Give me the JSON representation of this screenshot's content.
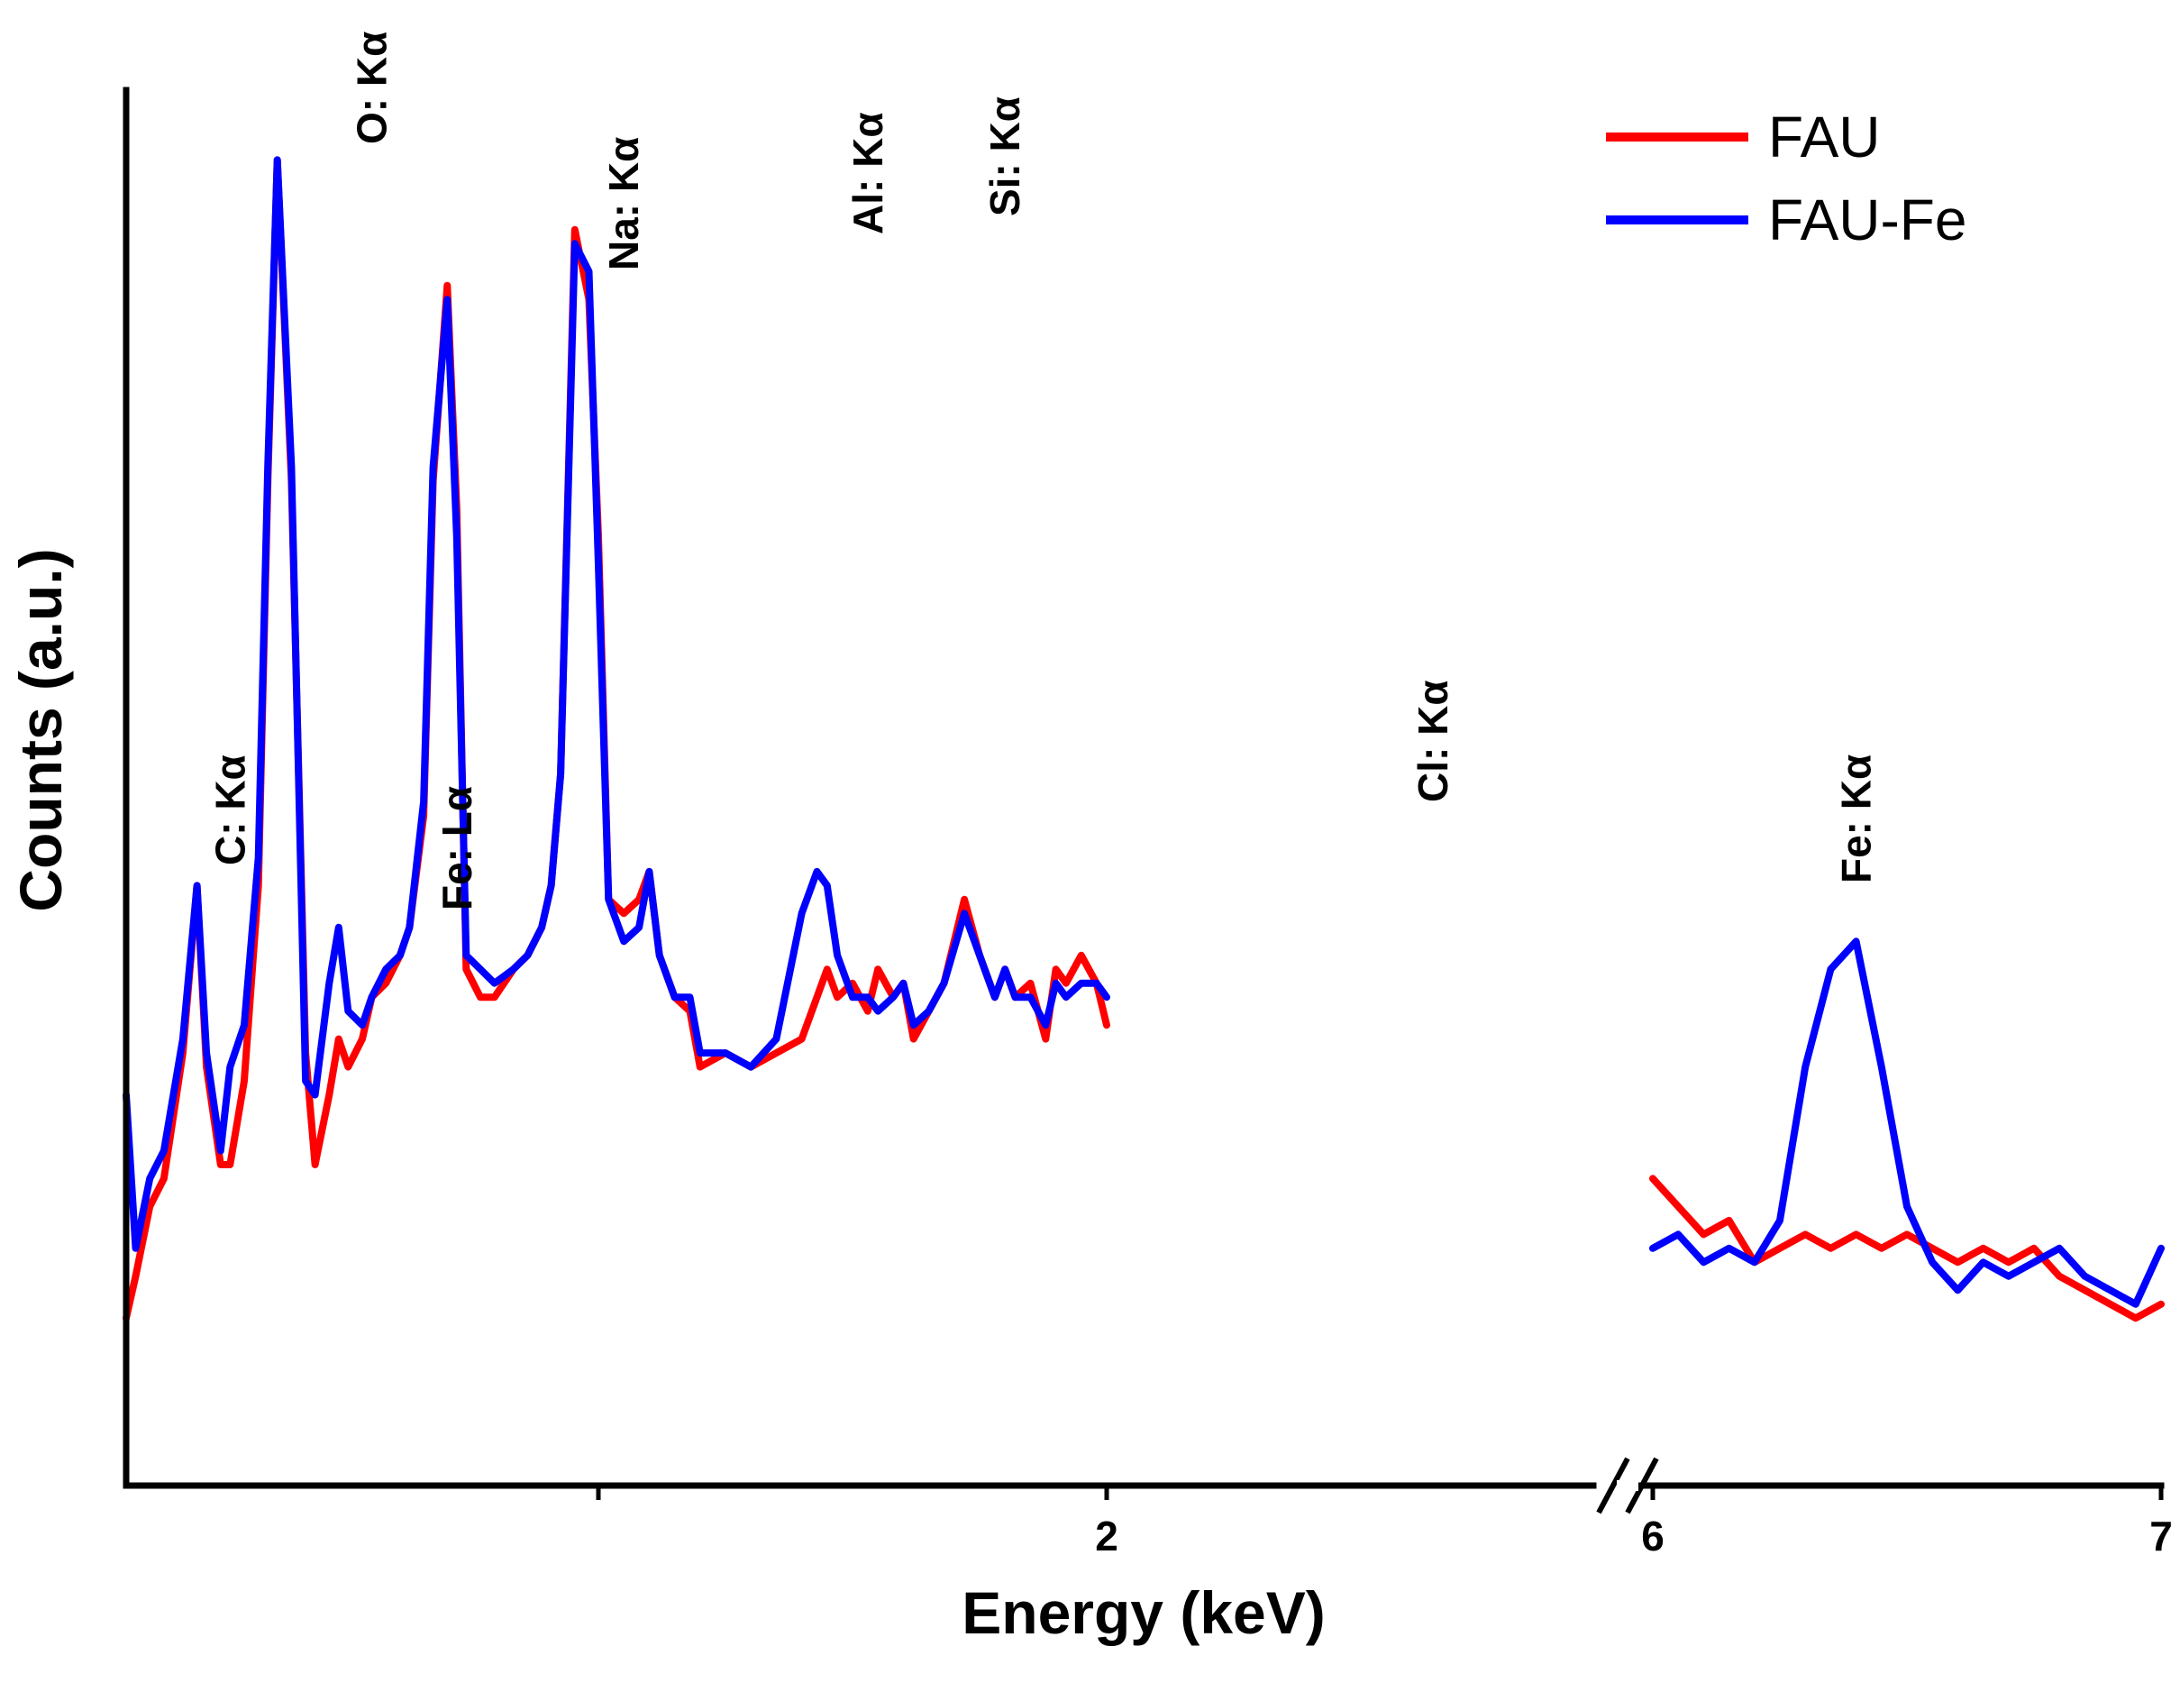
{
  "chart_data": {
    "type": "line",
    "xlabel": "Energy (keV)",
    "ylabel": "Counts (a.u.)",
    "x_segments": [
      {
        "range": [
          0,
          2.0
        ],
        "ticks": [
          {
            "value": 1.0,
            "label": ""
          },
          {
            "value": 2,
            "label": "2"
          }
        ]
      },
      {
        "range": [
          6,
          7
        ],
        "ticks": [
          {
            "value": 6,
            "label": "6"
          },
          {
            "value": 7,
            "label": "7"
          }
        ]
      }
    ],
    "axis_break": "between 2 keV and 6 keV",
    "ylim": [
      0,
      100
    ],
    "legend": {
      "position": "top-right"
    },
    "series": [
      {
        "name": "FAU",
        "color": "#ff0000",
        "segments": [
          {
            "x": [
              0.0,
              0.02,
              0.05,
              0.08,
              0.12,
              0.15,
              0.17,
              0.2,
              0.22,
              0.25,
              0.28,
              0.3,
              0.32,
              0.35,
              0.38,
              0.4,
              0.43,
              0.45,
              0.47,
              0.5,
              0.52,
              0.55,
              0.58,
              0.6,
              0.63,
              0.65,
              0.68,
              0.7,
              0.72,
              0.75,
              0.78,
              0.82,
              0.85,
              0.88,
              0.9,
              0.92,
              0.95,
              0.98,
              1.0,
              1.02,
              1.05,
              1.08,
              1.1,
              1.12,
              1.15,
              1.18,
              1.2,
              1.25,
              1.3,
              1.35,
              1.4,
              1.43,
              1.45,
              1.47,
              1.5,
              1.53,
              1.55,
              1.58,
              1.6,
              1.62,
              1.65,
              1.68,
              1.72,
              1.75,
              1.78,
              1.8,
              1.82,
              1.85,
              1.88,
              1.9,
              1.92,
              1.95,
              1.98,
              2.0
            ],
            "y": [
              12,
              15,
              20,
              22,
              31,
              43,
              30,
              23,
              23,
              29,
              43,
              72,
              95,
              72,
              31,
              23,
              28,
              32,
              30,
              32,
              35,
              36,
              38,
              40,
              48,
              72,
              86,
              70,
              37,
              35,
              35,
              37,
              38,
              40,
              43,
              51,
              90,
              85,
              68,
              42,
              41,
              42,
              44,
              38,
              35,
              34,
              30,
              31,
              30,
              31,
              32,
              35,
              37,
              35,
              36,
              34,
              37,
              35,
              36,
              32,
              34,
              36,
              42,
              38,
              35,
              37,
              35,
              36,
              32,
              37,
              36,
              38,
              36,
              33
            ]
          },
          {
            "x": [
              6.0,
              6.05,
              6.1,
              6.15,
              6.2,
              6.25,
              6.3,
              6.35,
              6.4,
              6.45,
              6.5,
              6.55,
              6.6,
              6.65,
              6.7,
              6.75,
              6.8,
              6.85,
              6.9,
              6.95,
              7.0
            ],
            "y": [
              22,
              20,
              18,
              19,
              16,
              17,
              18,
              17,
              18,
              17,
              18,
              17,
              16,
              17,
              16,
              17,
              15,
              14,
              13,
              12,
              13
            ]
          }
        ]
      },
      {
        "name": "FAU-Fe",
        "color": "#0000ff",
        "segments": [
          {
            "x": [
              0.0,
              0.02,
              0.05,
              0.08,
              0.12,
              0.15,
              0.17,
              0.2,
              0.22,
              0.25,
              0.28,
              0.3,
              0.32,
              0.35,
              0.38,
              0.4,
              0.43,
              0.45,
              0.47,
              0.5,
              0.52,
              0.55,
              0.58,
              0.6,
              0.63,
              0.65,
              0.68,
              0.7,
              0.72,
              0.75,
              0.78,
              0.82,
              0.85,
              0.88,
              0.9,
              0.92,
              0.95,
              0.98,
              1.0,
              1.02,
              1.05,
              1.08,
              1.1,
              1.12,
              1.15,
              1.18,
              1.2,
              1.25,
              1.3,
              1.35,
              1.4,
              1.43,
              1.45,
              1.47,
              1.5,
              1.53,
              1.55,
              1.58,
              1.6,
              1.62,
              1.65,
              1.68,
              1.72,
              1.75,
              1.78,
              1.8,
              1.82,
              1.85,
              1.88,
              1.9,
              1.92,
              1.95,
              1.98,
              2.0
            ],
            "y": [
              28,
              17,
              22,
              24,
              32,
              43,
              31,
              24,
              30,
              33,
              45,
              73,
              95,
              73,
              29,
              28,
              36,
              40,
              34,
              33,
              35,
              37,
              38,
              40,
              49,
              73,
              85,
              68,
              38,
              37,
              36,
              37,
              38,
              40,
              43,
              51,
              89,
              87,
              66,
              42,
              39,
              40,
              44,
              38,
              35,
              35,
              31,
              31,
              30,
              32,
              41,
              44,
              43,
              38,
              35,
              35,
              34,
              35,
              36,
              33,
              34,
              36,
              41,
              38,
              35,
              37,
              35,
              35,
              33,
              36,
              35,
              36,
              36,
              35
            ]
          },
          {
            "x": [
              6.0,
              6.05,
              6.1,
              6.15,
              6.2,
              6.25,
              6.3,
              6.35,
              6.4,
              6.45,
              6.5,
              6.55,
              6.6,
              6.65,
              6.7,
              6.75,
              6.8,
              6.85,
              6.9,
              6.95,
              7.0
            ],
            "y": [
              17,
              18,
              16,
              17,
              16,
              19,
              30,
              37,
              39,
              30,
              20,
              16,
              14,
              16,
              15,
              16,
              17,
              15,
              14,
              13,
              17
            ]
          }
        ]
      }
    ],
    "annotations": [
      {
        "text": "C: Kα",
        "x": 0.22
      },
      {
        "text": "O: Kα",
        "x": 0.52
      },
      {
        "text": "Fe: Lα",
        "x": 0.7
      },
      {
        "text": "Na: Kα",
        "x": 1.05
      },
      {
        "text": "Al: Kα",
        "x": 1.53
      },
      {
        "text": "Si: Kα",
        "x": 1.8
      },
      {
        "text": "Cl: Kα",
        "x": 2.6
      },
      {
        "text": "Fe: Kα",
        "x": 6.4
      }
    ]
  }
}
